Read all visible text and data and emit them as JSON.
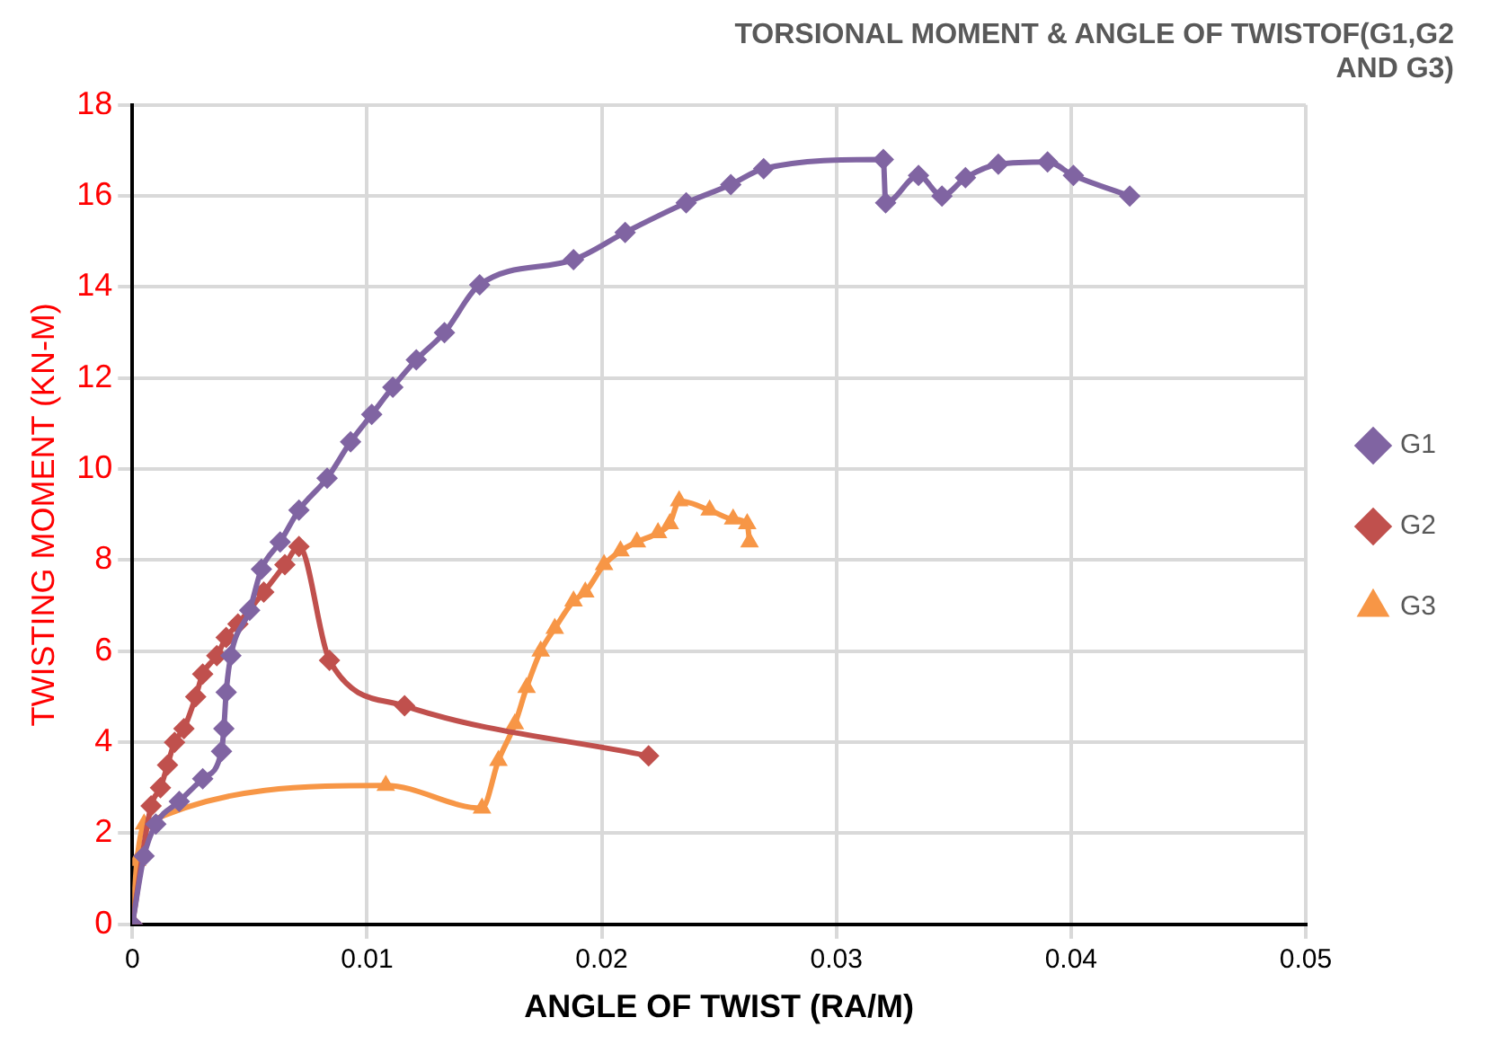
{
  "chart_data": {
    "type": "line",
    "title": "TORSIONAL MOMENT & ANGLE OF TWISTOF(G1,G2 AND G3)",
    "xlabel": "ANGLE OF TWIST (RA/M)",
    "ylabel": "TWISTING MOMENT (KN-M)",
    "xlim": [
      0,
      0.05
    ],
    "xticks": [
      0,
      0.01,
      0.02,
      0.03,
      0.04,
      0.05
    ],
    "ylim": [
      0,
      18
    ],
    "yticks": [
      0,
      2,
      4,
      6,
      8,
      10,
      12,
      14,
      16,
      18
    ],
    "grid": true,
    "legend": "right",
    "series": [
      {
        "name": "G1",
        "color": "#8064a2",
        "marker": "diamond",
        "x": [
          0,
          0.0005,
          0.001,
          0.002,
          0.003,
          0.0038,
          0.0039,
          0.004,
          0.0042,
          0.005,
          0.0055,
          0.0063,
          0.0071,
          0.0083,
          0.0093,
          0.0102,
          0.0111,
          0.0121,
          0.0133,
          0.0148,
          0.0188,
          0.021,
          0.0236,
          0.0255,
          0.0269,
          0.032,
          0.0321,
          0.0335,
          0.0345,
          0.0355,
          0.0369,
          0.039,
          0.0401,
          0.0425
        ],
        "values": [
          0,
          1.5,
          2.2,
          2.7,
          3.2,
          3.8,
          4.3,
          5.1,
          5.9,
          6.9,
          7.8,
          8.4,
          9.1,
          9.8,
          10.6,
          11.2,
          11.8,
          12.4,
          13.0,
          14.05,
          14.6,
          15.2,
          15.85,
          16.25,
          16.6,
          16.8,
          15.85,
          16.45,
          16.0,
          16.4,
          16.7,
          16.75,
          16.45,
          16.0
        ]
      },
      {
        "name": "G2",
        "color": "#c0504d",
        "marker": "diamond",
        "x": [
          0,
          0.0008,
          0.0012,
          0.0015,
          0.0018,
          0.0022,
          0.0027,
          0.003,
          0.0036,
          0.004,
          0.0045,
          0.0056,
          0.0065,
          0.0071,
          0.0084,
          0.0116,
          0.022
        ],
        "values": [
          0,
          2.6,
          3.0,
          3.5,
          4.0,
          4.3,
          5.0,
          5.5,
          5.9,
          6.3,
          6.6,
          7.3,
          7.9,
          8.3,
          5.8,
          4.8,
          3.7
        ]
      },
      {
        "name": "G3",
        "color": "#f79646",
        "marker": "triangle",
        "x": [
          0,
          0.0002,
          0.0005,
          0.0108,
          0.0149,
          0.0156,
          0.0163,
          0.0168,
          0.0174,
          0.018,
          0.0188,
          0.0193,
          0.0201,
          0.0208,
          0.0215,
          0.0224,
          0.0229,
          0.0233,
          0.0246,
          0.0256,
          0.0262,
          0.0263
        ],
        "values": [
          0,
          1.4,
          2.2,
          3.05,
          2.55,
          3.6,
          4.4,
          5.2,
          6.0,
          6.5,
          7.1,
          7.3,
          7.9,
          8.2,
          8.4,
          8.6,
          8.8,
          9.3,
          9.1,
          8.9,
          8.8,
          8.4
        ]
      }
    ]
  }
}
